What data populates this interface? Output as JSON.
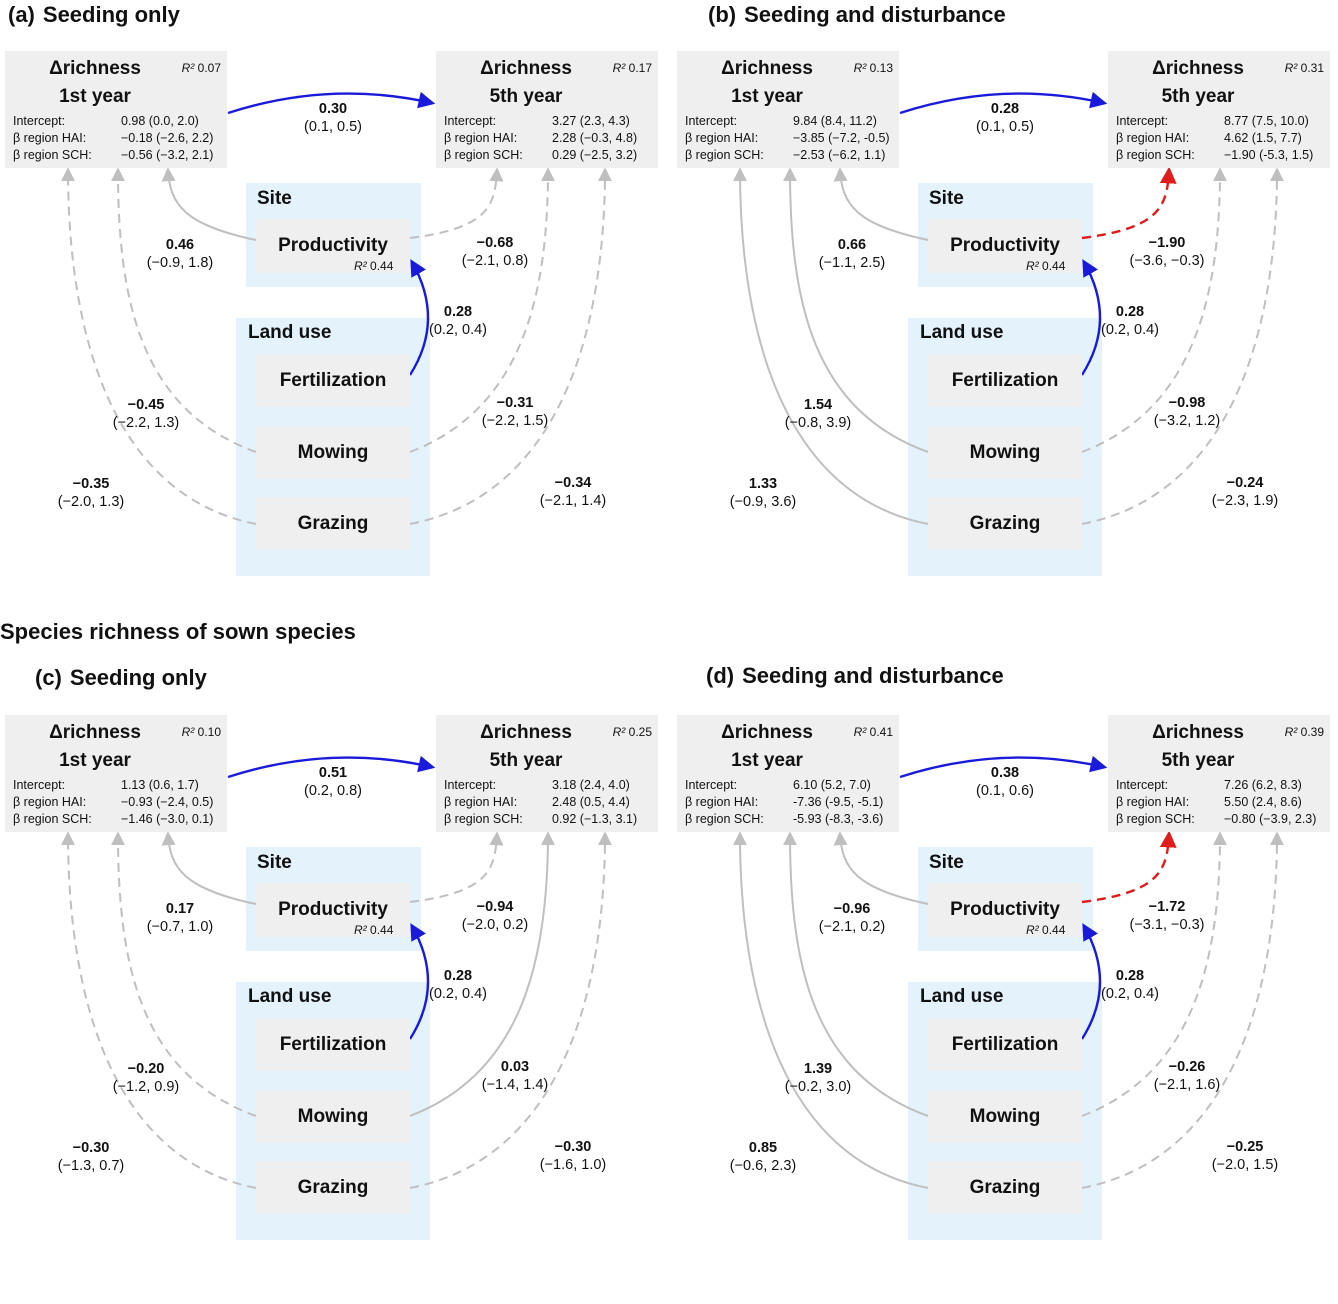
{
  "section_title": "Species richness of sown species",
  "colors": {
    "positive": "#1a1adb",
    "negative": "#e01b1b",
    "nonsig": "#bfbfbf",
    "box_bg": "#e4f2fc",
    "node_bg": "#efefef"
  },
  "labels": {
    "site": "Site",
    "land_use": "Land use",
    "productivity": "Productivity",
    "fertilization": "Fertilization",
    "mowing": "Mowing",
    "grazing": "Grazing",
    "rich_line1": "Δrichness",
    "year1": "1st year",
    "year5": "5th year",
    "r2_prefix": "R²",
    "intercept": "Intercept:",
    "beta_hai": "β region HAI:",
    "beta_sch": "β region SCH:"
  },
  "panels": [
    {
      "tag": "(a)",
      "title": "Seeding only",
      "y1": {
        "r2": "0.07",
        "intercept": "0.98 (0.0, 2.0)",
        "hai": "−0.18 (−2.6, 2.2)",
        "sch": "−0.56 (−3.2, 2.1)"
      },
      "y5": {
        "r2": "0.17",
        "intercept": "3.27 (2.3, 4.3)",
        "hai": "2.28 (−0.3, 4.8)",
        "sch": "0.29 (−2.5, 3.2)"
      },
      "prod_r2": "0.44",
      "coef": {
        "y1_y5": {
          "v": "0.30",
          "ci": "(0.1, 0.5)"
        },
        "prod_y1": {
          "v": "0.46",
          "ci": "(−0.9, 1.8)"
        },
        "prod_y5": {
          "v": "−0.68",
          "ci": "(−2.1, 0.8)"
        },
        "fert_prod": {
          "v": "0.28",
          "ci": "(0.2, 0.4)"
        },
        "mow_y1": {
          "v": "−0.45",
          "ci": "(−2.2, 1.3)"
        },
        "mow_y5": {
          "v": "−0.31",
          "ci": "(−2.2, 1.5)"
        },
        "graz_y1": {
          "v": "−0.35",
          "ci": "(−2.0, 1.3)"
        },
        "graz_y5": {
          "v": "−0.34",
          "ci": "(−2.1, 1.4)"
        }
      },
      "paths": {
        "prod_y1": "nonsig-solid",
        "prod_y5": "nonsig-dashed",
        "mow_y1": "nonsig-dashed",
        "mow_y5": "nonsig-dashed",
        "graz_y1": "nonsig-dashed",
        "graz_y5": "nonsig-dashed"
      }
    },
    {
      "tag": "(b)",
      "title": "Seeding and disturbance",
      "y1": {
        "r2": "0.13",
        "intercept": "9.84 (8.4, 11.2)",
        "hai": "−3.85 (−7.2, -0.5)",
        "sch": "−2.53 (−6.2, 1.1)"
      },
      "y5": {
        "r2": "0.31",
        "intercept": "8.77 (7.5, 10.0)",
        "hai": "4.62 (1.5, 7.7)",
        "sch": "−1.90 (-5.3, 1.5)"
      },
      "prod_r2": "0.44",
      "coef": {
        "y1_y5": {
          "v": "0.28",
          "ci": "(0.1, 0.5)"
        },
        "prod_y1": {
          "v": "0.66",
          "ci": "(−1.1, 2.5)"
        },
        "prod_y5": {
          "v": "−1.90",
          "ci": "(−3.6, −0.3)"
        },
        "fert_prod": {
          "v": "0.28",
          "ci": "(0.2, 0.4)"
        },
        "mow_y1": {
          "v": "1.54",
          "ci": "(−0.8, 3.9)"
        },
        "mow_y5": {
          "v": "−0.98",
          "ci": "(−3.2, 1.2)"
        },
        "graz_y1": {
          "v": "1.33",
          "ci": "(−0.9, 3.6)"
        },
        "graz_y5": {
          "v": "−0.24",
          "ci": "(−2.3, 1.9)"
        }
      },
      "paths": {
        "prod_y1": "nonsig-solid",
        "prod_y5": "negative",
        "mow_y1": "nonsig-solid",
        "mow_y5": "nonsig-dashed",
        "graz_y1": "nonsig-solid",
        "graz_y5": "nonsig-dashed"
      }
    },
    {
      "tag": "(c)",
      "title": "Seeding only",
      "y1": {
        "r2": "0.10",
        "intercept": "1.13 (0.6, 1.7)",
        "hai": "−0.93 (−2.4, 0.5)",
        "sch": "−1.46 (−3.0, 0.1)"
      },
      "y5": {
        "r2": "0.25",
        "intercept": "3.18 (2.4, 4.0)",
        "hai": "2.48 (0.5, 4.4)",
        "sch": "0.92 (−1.3, 3.1)"
      },
      "prod_r2": "0.44",
      "coef": {
        "y1_y5": {
          "v": "0.51",
          "ci": "(0.2, 0.8)"
        },
        "prod_y1": {
          "v": "0.17",
          "ci": "(−0.7, 1.0)"
        },
        "prod_y5": {
          "v": "−0.94",
          "ci": "(−2.0, 0.2)"
        },
        "fert_prod": {
          "v": "0.28",
          "ci": "(0.2, 0.4)"
        },
        "mow_y1": {
          "v": "−0.20",
          "ci": "(−1.2, 0.9)"
        },
        "mow_y5": {
          "v": "0.03",
          "ci": "(−1.4, 1.4)"
        },
        "graz_y1": {
          "v": "−0.30",
          "ci": "(−1.3, 0.7)"
        },
        "graz_y5": {
          "v": "−0.30",
          "ci": "(−1.6, 1.0)"
        }
      },
      "paths": {
        "prod_y1": "nonsig-solid",
        "prod_y5": "nonsig-dashed",
        "mow_y1": "nonsig-dashed",
        "mow_y5": "nonsig-solid",
        "graz_y1": "nonsig-dashed",
        "graz_y5": "nonsig-dashed"
      }
    },
    {
      "tag": "(d)",
      "title": "Seeding and disturbance",
      "y1": {
        "r2": "0.41",
        "intercept": "6.10 (5.2, 7.0)",
        "hai": "-7.36 (-9.5, -5.1)",
        "sch": "-5.93 (-8.3, -3.6)"
      },
      "y5": {
        "r2": "0.39",
        "intercept": "7.26 (6.2, 8.3)",
        "hai": "5.50 (2.4, 8.6)",
        "sch": "−0.80 (−3.9, 2.3)"
      },
      "prod_r2": "0.44",
      "coef": {
        "y1_y5": {
          "v": "0.38",
          "ci": "(0.1, 0.6)"
        },
        "prod_y1": {
          "v": "−0.96",
          "ci": "(−2.1, 0.2)"
        },
        "prod_y5": {
          "v": "−1.72",
          "ci": "(−3.1, −0.3)"
        },
        "fert_prod": {
          "v": "0.28",
          "ci": "(0.2, 0.4)"
        },
        "mow_y1": {
          "v": "1.39",
          "ci": "(−0.2, 3.0)"
        },
        "mow_y5": {
          "v": "−0.26",
          "ci": "(−2.1, 1.6)"
        },
        "graz_y1": {
          "v": "0.85",
          "ci": "(−0.6, 2.3)"
        },
        "graz_y5": {
          "v": "−0.25",
          "ci": "(−2.0, 1.5)"
        }
      },
      "paths": {
        "prod_y1": "nonsig-solid",
        "prod_y5": "negative",
        "mow_y1": "nonsig-solid",
        "mow_y5": "nonsig-dashed",
        "graz_y1": "nonsig-solid",
        "graz_y5": "nonsig-dashed"
      }
    }
  ]
}
